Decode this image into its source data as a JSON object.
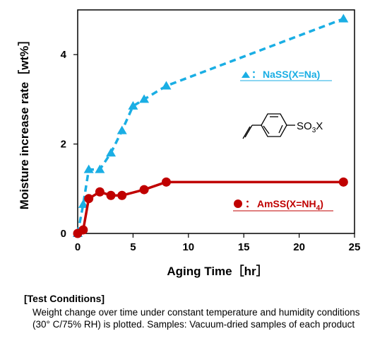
{
  "chart_data": {
    "type": "line",
    "xlabel": "Aging Time［hr］",
    "ylabel": "Moisture increase rate［wt%］",
    "xlim": [
      0,
      25
    ],
    "ylim": [
      0,
      5
    ],
    "xticks": [
      "0",
      "5",
      "10",
      "15",
      "20",
      "25"
    ],
    "yticks": [
      "0",
      "2",
      "4"
    ],
    "grid": false,
    "legend_placement": "inside-right",
    "series": [
      {
        "name": "NaSS(X=Na)",
        "legend_prefix": "▲：",
        "color": "#1aaee4",
        "marker": "triangle",
        "line_style": "dashed",
        "x": [
          0,
          0.5,
          1,
          2,
          3,
          4,
          5,
          6,
          8,
          24
        ],
        "y": [
          0,
          0.65,
          1.43,
          1.43,
          1.8,
          2.3,
          2.85,
          3.0,
          3.3,
          4.8
        ]
      },
      {
        "name": "AmSS(X=NH4)",
        "legend_prefix": "●：",
        "color": "#c00000",
        "marker": "circle",
        "line_style": "solid",
        "x": [
          0,
          0.5,
          1,
          2,
          3,
          4,
          6,
          8,
          24
        ],
        "y": [
          0,
          0.08,
          0.78,
          0.93,
          0.85,
          0.85,
          0.98,
          1.15,
          1.15
        ]
      }
    ],
    "structure_label": "SO3X"
  },
  "notes": {
    "heading": "[Test Conditions]",
    "body": "Weight change over time under constant temperature and humidity conditions (30° C/75% RH) is plotted.  Samples: Vacuum-dried samples of each product"
  }
}
